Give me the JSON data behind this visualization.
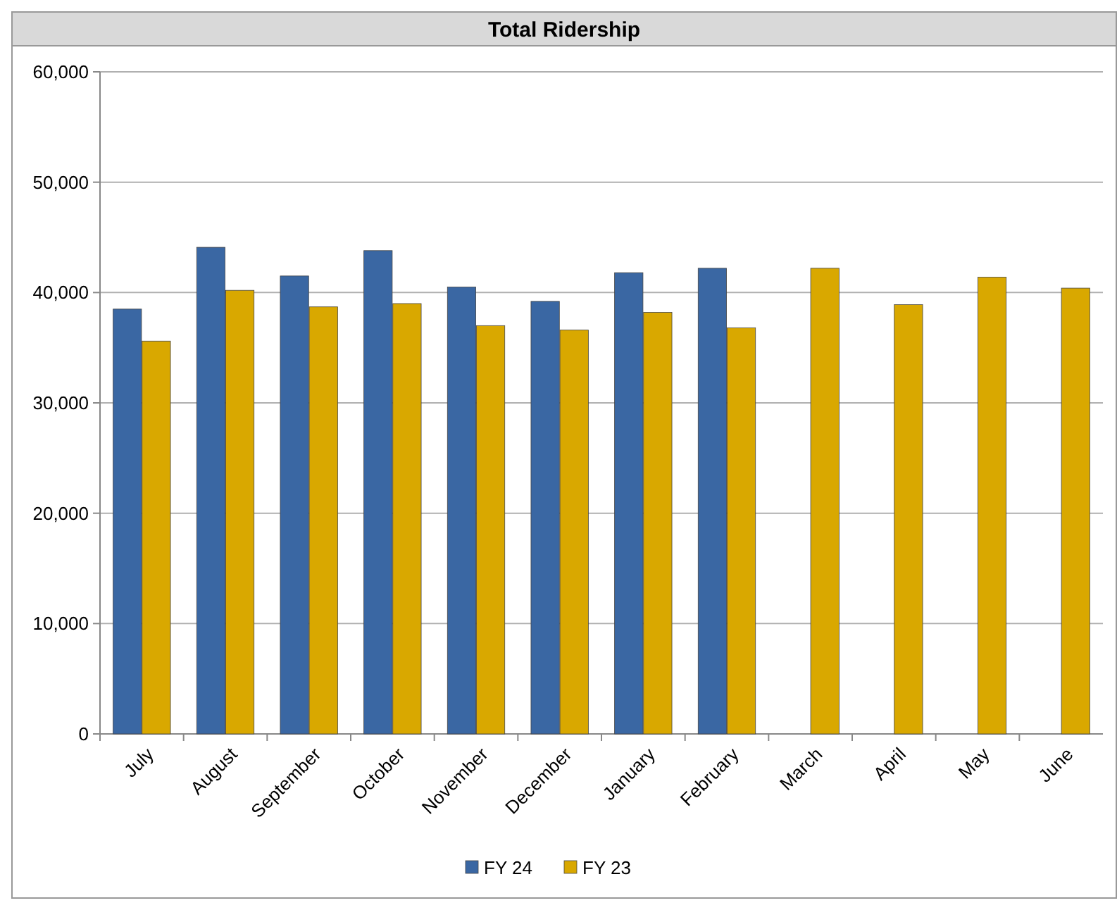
{
  "chart_data": {
    "type": "bar",
    "title": "Total Ridership",
    "categories": [
      "July",
      "August",
      "September",
      "October",
      "November",
      "December",
      "January",
      "February",
      "March",
      "April",
      "May",
      "June"
    ],
    "series": [
      {
        "name": "FY 24",
        "color": "#3a67a3",
        "values": [
          38500,
          44100,
          41500,
          43800,
          40500,
          39200,
          41800,
          42200,
          null,
          null,
          null,
          null
        ]
      },
      {
        "name": "FY 23",
        "color": "#d9a800",
        "values": [
          35600,
          40200,
          38700,
          39000,
          37000,
          36600,
          38200,
          36800,
          42200,
          38900,
          41400,
          40400
        ]
      }
    ],
    "ylim": [
      0,
      60000
    ],
    "yticks": [
      {
        "value": 0,
        "label": "0"
      },
      {
        "value": 10000,
        "label": "10,000"
      },
      {
        "value": 20000,
        "label": "20,000"
      },
      {
        "value": 30000,
        "label": "30,000"
      },
      {
        "value": 40000,
        "label": "40,000"
      },
      {
        "value": 50000,
        "label": "50,000"
      },
      {
        "value": 60000,
        "label": "60,000"
      }
    ],
    "grid": "y",
    "legend": "bottom"
  }
}
